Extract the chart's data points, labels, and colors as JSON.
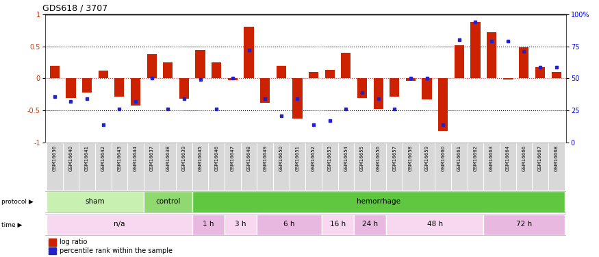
{
  "title": "GDS618 / 3707",
  "samples": [
    "GSM16636",
    "GSM16640",
    "GSM16641",
    "GSM16642",
    "GSM16643",
    "GSM16644",
    "GSM16637",
    "GSM16638",
    "GSM16639",
    "GSM16645",
    "GSM16646",
    "GSM16647",
    "GSM16648",
    "GSM16649",
    "GSM16650",
    "GSM16651",
    "GSM16652",
    "GSM16653",
    "GSM16654",
    "GSM16655",
    "GSM16656",
    "GSM16657",
    "GSM16658",
    "GSM16659",
    "GSM16660",
    "GSM16661",
    "GSM16662",
    "GSM16663",
    "GSM16664",
    "GSM16666",
    "GSM16667",
    "GSM16668"
  ],
  "log_ratio": [
    0.2,
    -0.3,
    -0.22,
    0.12,
    -0.28,
    -0.42,
    0.38,
    0.25,
    -0.32,
    0.44,
    0.25,
    -0.03,
    0.8,
    -0.38,
    0.2,
    -0.62,
    0.1,
    0.13,
    0.4,
    -0.3,
    -0.48,
    -0.28,
    -0.04,
    -0.33,
    -0.82,
    0.52,
    0.88,
    0.72,
    -0.02,
    0.48,
    0.17,
    0.1
  ],
  "percentile": [
    36,
    32,
    34,
    14,
    26,
    32,
    50,
    26,
    34,
    49,
    26,
    50,
    72,
    34,
    21,
    34,
    14,
    17,
    26,
    39,
    34,
    26,
    50,
    50,
    14,
    80,
    94,
    79,
    79,
    71,
    59,
    59
  ],
  "protocol_groups": [
    {
      "label": "sham",
      "start": 0,
      "end": 6,
      "color": "#c8f0b0"
    },
    {
      "label": "control",
      "start": 6,
      "end": 9,
      "color": "#90d870"
    },
    {
      "label": "hemorrhage",
      "start": 9,
      "end": 32,
      "color": "#60c840"
    }
  ],
  "time_groups": [
    {
      "label": "n/a",
      "start": 0,
      "end": 9,
      "color": "#f8d8f0"
    },
    {
      "label": "1 h",
      "start": 9,
      "end": 11,
      "color": "#e8b8e0"
    },
    {
      "label": "3 h",
      "start": 11,
      "end": 13,
      "color": "#f8d8f0"
    },
    {
      "label": "6 h",
      "start": 13,
      "end": 17,
      "color": "#e8b8e0"
    },
    {
      "label": "16 h",
      "start": 17,
      "end": 19,
      "color": "#f8d8f0"
    },
    {
      "label": "24 h",
      "start": 19,
      "end": 21,
      "color": "#e8b8e0"
    },
    {
      "label": "48 h",
      "start": 21,
      "end": 27,
      "color": "#f8d8f0"
    },
    {
      "label": "72 h",
      "start": 27,
      "end": 32,
      "color": "#e8b8e0"
    }
  ],
  "bar_color": "#cc2200",
  "dot_color": "#2222cc",
  "left_ylim": [
    -1,
    1
  ],
  "right_ylim": [
    0,
    100
  ],
  "left_yticks": [
    -1,
    -0.5,
    0,
    0.5,
    1
  ],
  "right_yticks": [
    0,
    25,
    50,
    75,
    100
  ],
  "right_yticklabels": [
    "0",
    "25",
    "50",
    "75",
    "100%"
  ]
}
